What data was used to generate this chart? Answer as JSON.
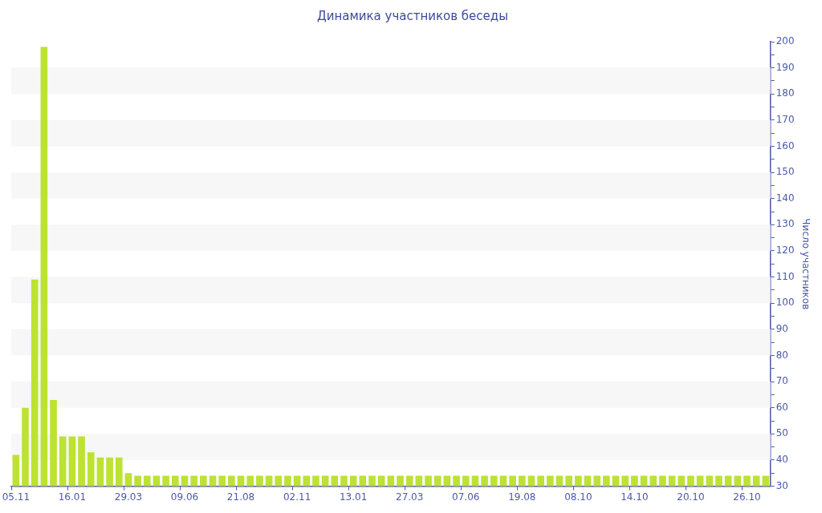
{
  "chart_data": {
    "type": "bar",
    "title": "Динамика участников беседы",
    "ylabel": "Число участников",
    "categories": [
      "05.11",
      null,
      null,
      null,
      null,
      null,
      "16.01",
      null,
      null,
      null,
      null,
      null,
      "29.03",
      null,
      null,
      null,
      null,
      null,
      "09.06",
      null,
      null,
      null,
      null,
      null,
      "21.08",
      null,
      null,
      null,
      null,
      null,
      "02.11",
      null,
      null,
      null,
      null,
      null,
      "13.01",
      null,
      null,
      null,
      null,
      null,
      "27.03",
      null,
      null,
      null,
      null,
      null,
      "07.06",
      null,
      null,
      null,
      null,
      null,
      "19.08",
      null,
      null,
      null,
      null,
      null,
      "08.10",
      null,
      null,
      null,
      null,
      null,
      "14.10",
      null,
      null,
      null,
      null,
      null,
      "20.10",
      null,
      null,
      null,
      null,
      null,
      "26.10",
      null,
      null
    ],
    "series": [
      {
        "color": "#bde232",
        "values": [
          42,
          60,
          109,
          198,
          63,
          49,
          49,
          49,
          43,
          41,
          41,
          41,
          35,
          34,
          34,
          34,
          34,
          34,
          34,
          34,
          34,
          34,
          34,
          34,
          34,
          34,
          34,
          34,
          34,
          34,
          34,
          34,
          34,
          34,
          34,
          34,
          34,
          34,
          34,
          34,
          34,
          34,
          34,
          34,
          34,
          34,
          34,
          34,
          34,
          34,
          34,
          34,
          34,
          34,
          34,
          34,
          34,
          34,
          34,
          34,
          34,
          34,
          34,
          34,
          34,
          34,
          34,
          34,
          34,
          34,
          34,
          34,
          34,
          34,
          34,
          34,
          34,
          34,
          34,
          34,
          34
        ]
      }
    ],
    "ylim": [
      30,
      200
    ],
    "yticks": [
      30,
      {
        "value": 35,
        "label": null
      },
      40,
      {
        "value": 45,
        "label": null
      },
      50,
      {
        "value": 55,
        "label": null
      },
      60,
      {
        "value": 65,
        "label": null
      },
      70,
      {
        "value": 75,
        "label": null
      },
      80,
      {
        "value": 85,
        "label": null
      },
      90,
      {
        "value": 95,
        "label": null
      },
      100,
      {
        "value": 105,
        "label": null
      },
      110,
      {
        "value": 115,
        "label": null
      },
      120,
      {
        "value": 125,
        "label": null
      },
      130,
      {
        "value": 135,
        "label": null
      },
      140,
      {
        "value": 145,
        "label": null
      },
      150,
      {
        "value": 155,
        "label": null
      },
      160,
      {
        "value": 165,
        "label": null
      },
      170,
      {
        "value": 175,
        "label": null
      },
      180,
      {
        "value": 185,
        "label": null
      },
      190,
      {
        "value": 195,
        "label": null
      },
      200
    ],
    "bands": [
      {
        "axis": "y",
        "from": 40,
        "to": 50,
        "color": "#f7f7f7"
      },
      {
        "axis": "y",
        "from": 60,
        "to": 70,
        "color": "#f7f7f7"
      },
      {
        "axis": "y",
        "from": 80,
        "to": 90,
        "color": "#f7f7f7"
      },
      {
        "axis": "y",
        "from": 100,
        "to": 110,
        "color": "#f7f7f7"
      },
      {
        "axis": "y",
        "from": 120,
        "to": 130,
        "color": "#f7f7f7"
      },
      {
        "axis": "y",
        "from": 140,
        "to": 150,
        "color": "#f7f7f7"
      },
      {
        "axis": "y",
        "from": 160,
        "to": 170,
        "color": "#f7f7f7"
      },
      {
        "axis": "y",
        "from": 180,
        "to": 190,
        "color": "#f7f7f7"
      }
    ],
    "legend": false,
    "grid": false
  }
}
